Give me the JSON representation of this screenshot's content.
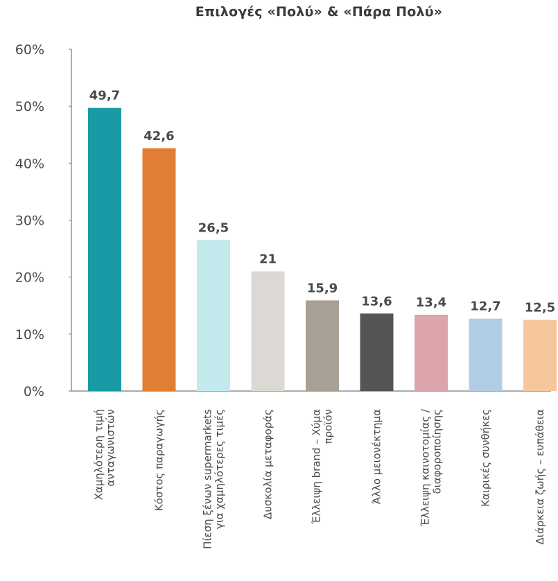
{
  "chart_data": {
    "type": "bar",
    "title": "Επιλογές «Πολύ» & «Πάρα Πολύ»",
    "ylim": [
      0,
      60
    ],
    "yticks": [
      "0%",
      "10%",
      "20%",
      "30%",
      "40%",
      "50%",
      "60%"
    ],
    "ytick_values": [
      0,
      10,
      20,
      30,
      40,
      50,
      60
    ],
    "grid": false,
    "categories": [
      [
        "Χαμηλότερη τιμή",
        "ανταγωνιστών"
      ],
      [
        "Κόστος παραγωγής"
      ],
      [
        "Πίεση ξένων supermarkets",
        "για χαμηλότερες τιμές"
      ],
      [
        "Δυσκολία μεταφοράς"
      ],
      [
        "Έλλειψη brand – Χύμα",
        "προϊόν"
      ],
      [
        "Άλλο μειονέκτημα"
      ],
      [
        "Έλλειψη καινοτομίας /",
        "διαφοροποίησης"
      ],
      [
        "Καιρικές συνθήκες"
      ],
      [
        "Διάρκεια ζωής – ευπάθεια"
      ]
    ],
    "values": [
      49.7,
      42.6,
      26.5,
      21,
      15.9,
      13.6,
      13.4,
      12.7,
      12.5
    ],
    "value_labels": [
      "49,7",
      "42,6",
      "26,5",
      "21",
      "15,9",
      "13,6",
      "13,4",
      "12,7",
      "12,5"
    ],
    "colors": [
      "#1a9aa5",
      "#e07f33",
      "#c3e9ec",
      "#dcd9d5",
      "#a9a095",
      "#555555",
      "#dba5ab",
      "#b1cde6",
      "#f6c79d"
    ],
    "axis_color": "#777777",
    "text_color": "#4a4a4a"
  }
}
